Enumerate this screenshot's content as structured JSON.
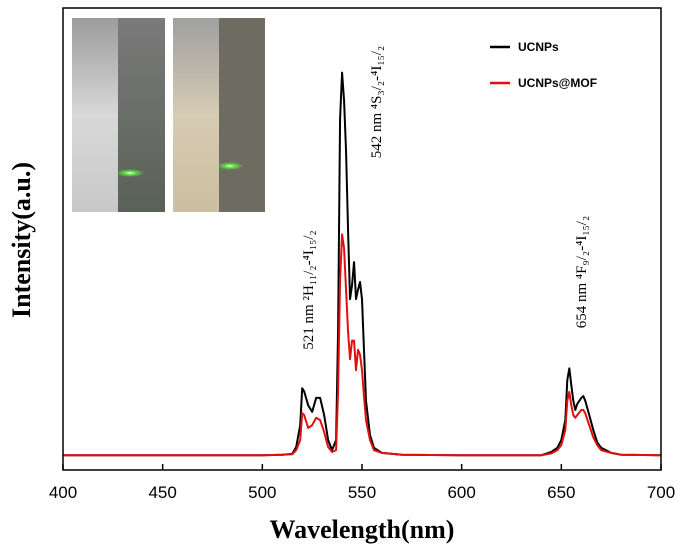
{
  "chart_data": {
    "type": "line",
    "xlabel": "Wavelength(nm)",
    "ylabel": "Intensity(a.u.)",
    "x": [
      400,
      450,
      500,
      510,
      515,
      517,
      519,
      520,
      521,
      523,
      525,
      527,
      529,
      531,
      533,
      535,
      537,
      538,
      539,
      540,
      541,
      542,
      543,
      544,
      545,
      546,
      547,
      548,
      549,
      550,
      551,
      552,
      554,
      556,
      560,
      570,
      600,
      640,
      645,
      648,
      650,
      652,
      653,
      654,
      655,
      656,
      657,
      658,
      660,
      661,
      662,
      664,
      666,
      668,
      670,
      675,
      680,
      700
    ],
    "series": [
      {
        "name": "UCNPs",
        "color": "#000000",
        "values": [
          3.2,
          3.2,
          3.2,
          3.3,
          3.5,
          5,
          9.7,
          17.7,
          17,
          14,
          12.6,
          15.6,
          15.6,
          11.9,
          6.5,
          4.3,
          6.5,
          30,
          76,
          86,
          80,
          69,
          52,
          37,
          40,
          45,
          37,
          39,
          40.7,
          37,
          26,
          15,
          7.6,
          4.8,
          3.7,
          3.3,
          3.2,
          3.2,
          3.9,
          4.8,
          6.5,
          10.8,
          19.5,
          22,
          18.4,
          15,
          13,
          14.3,
          15.6,
          16,
          15,
          11.9,
          8.7,
          6,
          4.8,
          3.7,
          3.3,
          3.2
        ]
      },
      {
        "name": "UCNPs@MOF",
        "color": "#e01010",
        "values": [
          3.2,
          3.2,
          3.2,
          3.3,
          3.4,
          4.3,
          6.5,
          12.3,
          11.9,
          9.1,
          9.7,
          11.3,
          10.8,
          8.2,
          5,
          3.9,
          4.3,
          17,
          41,
          51,
          48,
          39,
          30,
          24,
          28,
          28,
          21.6,
          26,
          25,
          21.6,
          16,
          10.8,
          6.5,
          4.3,
          3.7,
          3.3,
          3.2,
          3.2,
          3.6,
          4.3,
          5.4,
          8.7,
          15,
          16.9,
          14,
          11.9,
          11.3,
          11.9,
          13,
          13,
          12.3,
          9.7,
          7.1,
          5.4,
          4.3,
          3.7,
          3.3,
          3.2
        ]
      }
    ],
    "xlim": [
      400,
      700
    ],
    "xticks": [
      400,
      450,
      500,
      550,
      600,
      650,
      700
    ],
    "ylim": [
      0,
      100
    ],
    "annotations": [
      "521 nm ²H₁₁/₂-⁴I₁₅/₂",
      "542 nm ⁴S₃/₂-⁴I₁₅/₂",
      "654 nm ⁴F₉/₂-⁴I₁₅/₂"
    ],
    "legend": "upper right"
  }
}
